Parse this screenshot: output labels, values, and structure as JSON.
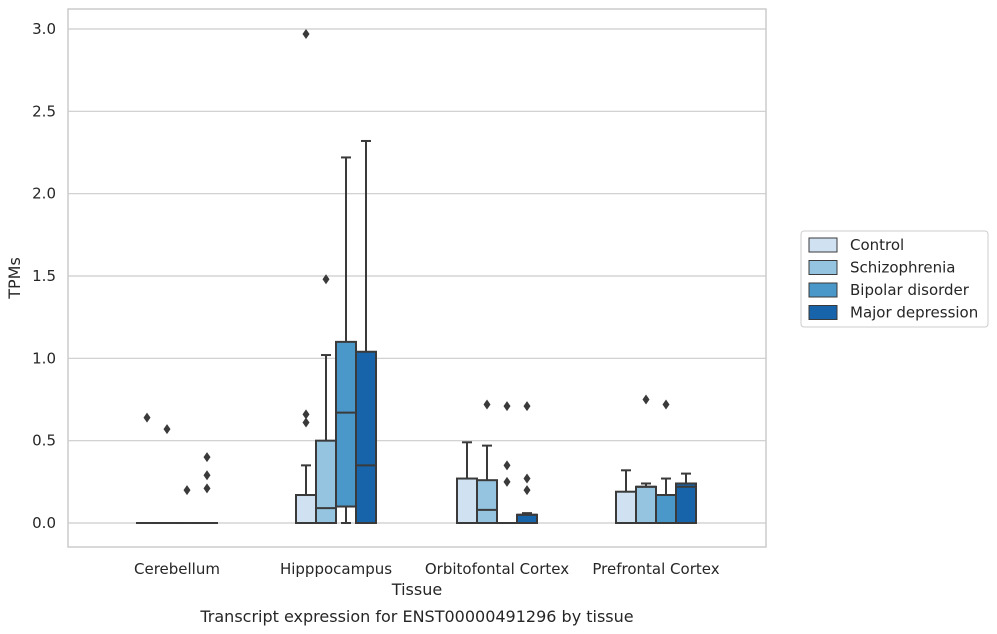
{
  "chart_data": {
    "type": "box",
    "caption": "Transcript expression for ENST00000491296 by tissue",
    "xlabel": "Tissue",
    "ylabel": "TPMs",
    "ylim": [
      -0.15,
      3.12
    ],
    "yticks": [
      0.0,
      0.5,
      1.0,
      1.5,
      2.0,
      2.5,
      3.0
    ],
    "ytick_labels": [
      "0.0",
      "0.5",
      "1.0",
      "1.5",
      "2.0",
      "2.5",
      "3.0"
    ],
    "grid": true,
    "legend_position": "right",
    "categories": [
      "Cerebellum",
      "Hipppocampus",
      "Orbitofontal Cortex",
      "Prefrontal Cortex"
    ],
    "series": [
      {
        "name": "Control",
        "color": "#d0e1f2",
        "boxes": [
          {
            "whislo": 0,
            "q1": 0,
            "med": 0,
            "q3": 0,
            "whishi": 0,
            "fliers": [
              0.64
            ]
          },
          {
            "whislo": 0,
            "q1": 0,
            "med": 0,
            "q3": 0.17,
            "whishi": 0.35,
            "fliers": [
              0.61,
              0.66,
              2.97
            ]
          },
          {
            "whislo": 0,
            "q1": 0,
            "med": 0,
            "q3": 0.27,
            "whishi": 0.49,
            "fliers": []
          },
          {
            "whislo": 0,
            "q1": 0,
            "med": 0,
            "q3": 0.19,
            "whishi": 0.32,
            "fliers": []
          }
        ]
      },
      {
        "name": "Schizophrenia",
        "color": "#94c4df",
        "boxes": [
          {
            "whislo": 0,
            "q1": 0,
            "med": 0,
            "q3": 0,
            "whishi": 0,
            "fliers": [
              0.57
            ]
          },
          {
            "whislo": 0,
            "q1": 0,
            "med": 0.09,
            "q3": 0.5,
            "whishi": 1.02,
            "fliers": [
              1.48
            ]
          },
          {
            "whislo": 0,
            "q1": 0,
            "med": 0.08,
            "q3": 0.26,
            "whishi": 0.47,
            "fliers": [
              0.72
            ]
          },
          {
            "whislo": 0,
            "q1": 0,
            "med": 0.22,
            "q3": 0.22,
            "whishi": 0.24,
            "fliers": [
              0.75
            ]
          }
        ]
      },
      {
        "name": "Bipolar disorder",
        "color": "#4a98c9",
        "boxes": [
          {
            "whislo": 0,
            "q1": 0,
            "med": 0,
            "q3": 0,
            "whishi": 0,
            "fliers": [
              0.2
            ]
          },
          {
            "whislo": 0,
            "q1": 0.1,
            "med": 0.67,
            "q3": 1.1,
            "whishi": 2.22,
            "fliers": []
          },
          {
            "whislo": 0,
            "q1": 0,
            "med": 0,
            "q3": 0,
            "whishi": 0,
            "fliers": [
              0.25,
              0.35,
              0.71
            ]
          },
          {
            "whislo": 0,
            "q1": 0,
            "med": 0.17,
            "q3": 0.17,
            "whishi": 0.27,
            "fliers": [
              0.72
            ]
          }
        ]
      },
      {
        "name": "Major depression",
        "color": "#1764ab",
        "boxes": [
          {
            "whislo": 0,
            "q1": 0,
            "med": 0,
            "q3": 0,
            "whishi": 0,
            "fliers": [
              0.21,
              0.29,
              0.4
            ]
          },
          {
            "whislo": 0,
            "q1": 0,
            "med": 0.35,
            "q3": 1.04,
            "whishi": 2.32,
            "fliers": []
          },
          {
            "whislo": 0,
            "q1": 0,
            "med": 0.05,
            "q3": 0.05,
            "whishi": 0.06,
            "fliers": [
              0.2,
              0.27,
              0.71
            ]
          },
          {
            "whislo": 0,
            "q1": 0,
            "med": 0.22,
            "q3": 0.24,
            "whishi": 0.3,
            "fliers": []
          }
        ]
      }
    ]
  }
}
